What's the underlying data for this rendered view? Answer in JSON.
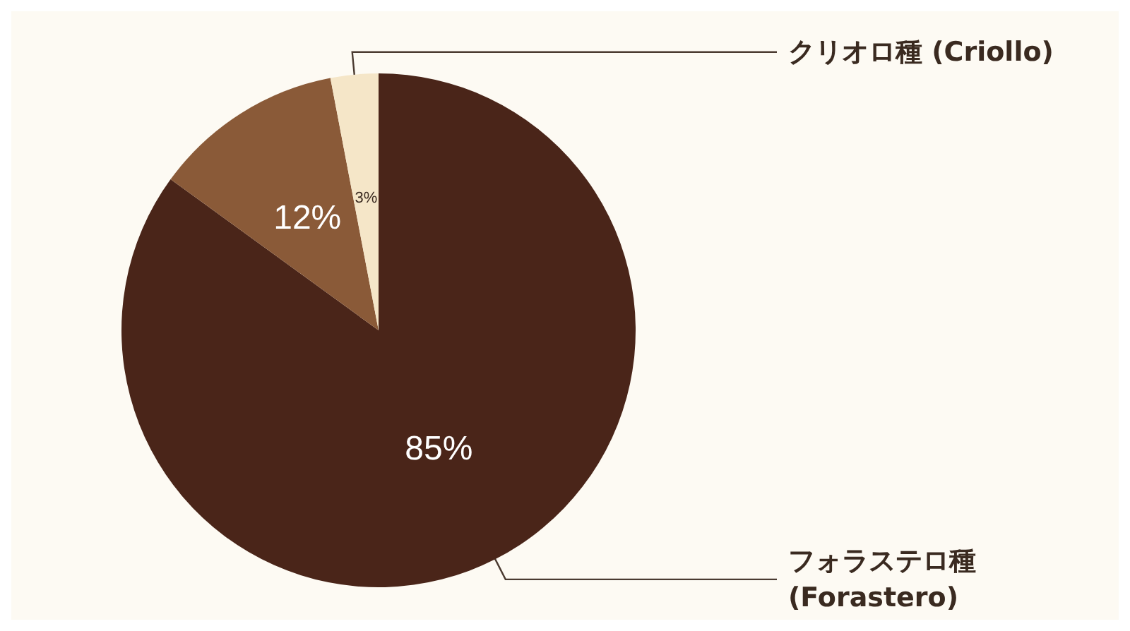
{
  "chart_data": {
    "type": "pie",
    "categories": [
      "フォラステロ種\n(Forastero)",
      null,
      "クリオロ種 (Criollo)"
    ],
    "values": [
      85,
      12,
      3
    ],
    "colors": [
      "#4a2519",
      "#8a5a38",
      "#f5e6c8"
    ],
    "value_labels": [
      "85%",
      "12%",
      "3%"
    ]
  }
}
